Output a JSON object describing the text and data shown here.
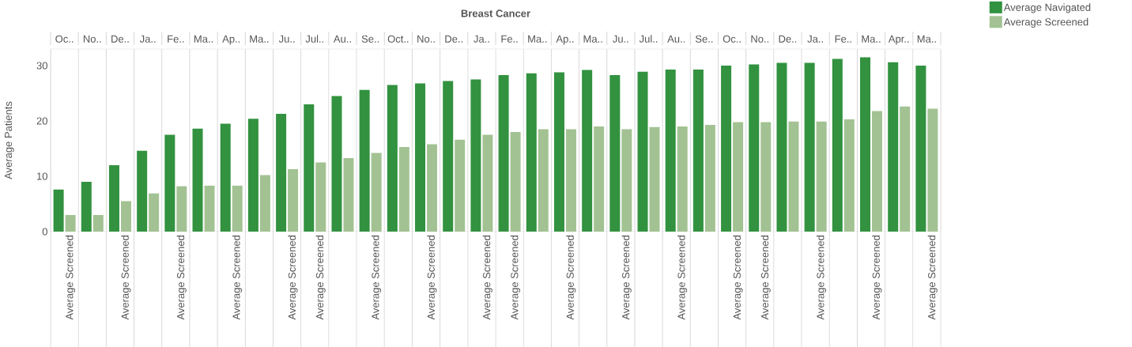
{
  "chart_data": {
    "type": "bar",
    "title": "Breast Cancer",
    "ylabel": "Average Patients",
    "categories": [
      "Oc..",
      "No..",
      "De..",
      "Ja..",
      "Fe..",
      "Ma..",
      "Ap..",
      "Ma..",
      "Ju..",
      "Jul..",
      "Au..",
      "Se..",
      "Oct..",
      "No..",
      "De..",
      "Ja..",
      "Fe..",
      "Ma..",
      "Ap..",
      "Ma..",
      "Ju..",
      "Jul..",
      "Au..",
      "Se..",
      "Oc..",
      "No..",
      "De..",
      "Ja..",
      "Fe..",
      "Ma..",
      "Apr..",
      "Ma.."
    ],
    "series": [
      {
        "name": "Average Navigated",
        "color": "#32923f",
        "values": [
          7.6,
          9.0,
          12.0,
          14.6,
          17.5,
          18.6,
          19.5,
          20.4,
          21.3,
          23.0,
          24.5,
          25.6,
          26.5,
          26.8,
          27.2,
          27.5,
          28.3,
          28.6,
          28.8,
          29.2,
          28.3,
          28.9,
          29.3,
          29.3,
          30.0,
          30.2,
          30.5,
          30.5,
          31.2,
          31.5,
          30.6,
          30.0
        ]
      },
      {
        "name": "Average Screened",
        "color": "#a3c293",
        "values": [
          3.0,
          3.0,
          5.5,
          6.9,
          8.2,
          8.3,
          8.3,
          10.2,
          11.3,
          12.5,
          13.3,
          14.2,
          15.3,
          15.8,
          16.6,
          17.5,
          18.0,
          18.5,
          18.5,
          19.0,
          18.5,
          18.9,
          19.0,
          19.3,
          19.8,
          19.8,
          19.9,
          19.9,
          20.3,
          21.8,
          22.6,
          22.2
        ]
      }
    ],
    "ylim": [
      0,
      33
    ],
    "yticks": [
      0,
      10,
      20,
      30
    ],
    "grid": "x",
    "legend": "top right",
    "annotations": [
      "Average Screened",
      "Average Screened",
      "Average Screened",
      "Average Screened",
      "Average Screened",
      "Average Screened",
      "Average Screened",
      "Average Screened",
      "Average Screened",
      "Average Screened",
      "Average Screened",
      "Average Screened",
      "Average Screened",
      "Average Screened",
      "Average Screened",
      "Average Screened",
      "Average Screened",
      "Average Screened"
    ]
  }
}
